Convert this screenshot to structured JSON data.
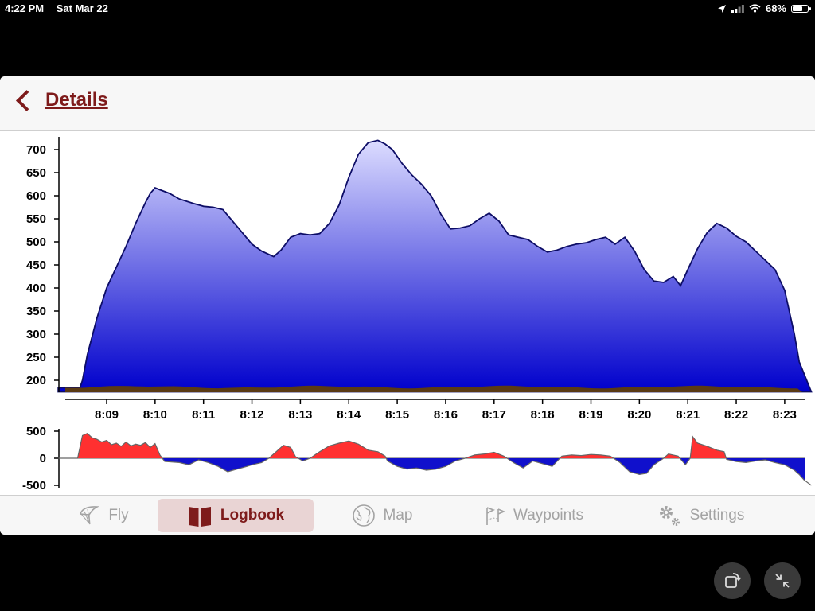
{
  "status": {
    "time": "4:22 PM",
    "date": "Sat Mar 22",
    "battery": "68%",
    "battery_level": 0.68
  },
  "nav": {
    "back_label": "Details"
  },
  "chart_data": [
    {
      "type": "area",
      "title": "",
      "xlabel": "",
      "ylabel": "",
      "ylim": [
        175,
        725
      ],
      "yticks": [
        200,
        250,
        300,
        350,
        400,
        450,
        500,
        550,
        600,
        650,
        700
      ],
      "xticks": [
        "8:09",
        "8:10",
        "8:11",
        "8:12",
        "8:13",
        "8:14",
        "8:15",
        "8:16",
        "8:17",
        "8:18",
        "8:19",
        "8:20",
        "8:21",
        "8:22",
        "8:23"
      ],
      "fill_top_color": "#dcdcff",
      "fill_bottom_color": "#0000cc",
      "line_color": "#0d0d66",
      "ground_color": "#5a3a14",
      "series": [
        {
          "name": "",
          "x": [
            8.0,
            8.3,
            8.45,
            8.5,
            8.6,
            8.8,
            9.0,
            9.2,
            9.4,
            9.6,
            9.8,
            9.9,
            10.0,
            10.1,
            10.3,
            10.5,
            10.8,
            11.0,
            11.2,
            11.4,
            11.6,
            11.8,
            12.0,
            12.2,
            12.45,
            12.6,
            12.8,
            13.0,
            13.2,
            13.4,
            13.6,
            13.8,
            14.0,
            14.2,
            14.4,
            14.6,
            14.75,
            14.9,
            15.1,
            15.3,
            15.5,
            15.7,
            15.9,
            16.1,
            16.3,
            16.5,
            16.7,
            16.9,
            17.1,
            17.3,
            17.5,
            17.7,
            17.9,
            18.1,
            18.3,
            18.5,
            18.7,
            18.9,
            19.1,
            19.3,
            19.5,
            19.7,
            19.9,
            20.1,
            20.3,
            20.5,
            20.7,
            20.85,
            21.0,
            21.2,
            21.4,
            21.6,
            21.8,
            22.0,
            22.2,
            22.4,
            22.6,
            22.8,
            23.0,
            23.2,
            23.3,
            23.55
          ],
          "y": [
            184,
            184,
            184,
            200,
            255,
            335,
            400,
            445,
            490,
            540,
            585,
            605,
            617,
            613,
            605,
            593,
            583,
            577,
            575,
            570,
            545,
            520,
            495,
            480,
            468,
            482,
            510,
            518,
            515,
            518,
            540,
            580,
            640,
            690,
            715,
            720,
            712,
            700,
            670,
            645,
            625,
            600,
            560,
            528,
            530,
            535,
            550,
            562,
            545,
            515,
            510,
            505,
            490,
            478,
            482,
            490,
            495,
            498,
            505,
            510,
            495,
            510,
            480,
            440,
            415,
            412,
            425,
            405,
            440,
            485,
            520,
            540,
            530,
            512,
            500,
            480,
            460,
            440,
            395,
            300,
            240,
            175
          ]
        }
      ]
    },
    {
      "type": "area",
      "title": "",
      "xlabel": "",
      "ylabel": "",
      "ylim": [
        -500,
        500
      ],
      "yticks": [
        500,
        0,
        -500
      ],
      "positive_color": "#ff3030",
      "negative_color": "#1010cc",
      "series": [
        {
          "name": "",
          "x": [
            8.0,
            8.4,
            8.5,
            8.6,
            8.7,
            8.8,
            8.9,
            9.0,
            9.1,
            9.2,
            9.3,
            9.4,
            9.5,
            9.6,
            9.7,
            9.8,
            9.9,
            10.0,
            10.1,
            10.2,
            10.5,
            10.7,
            10.9,
            11.1,
            11.3,
            11.5,
            11.7,
            11.9,
            12.0,
            12.2,
            12.35,
            12.5,
            12.65,
            12.8,
            12.9,
            13.05,
            13.2,
            13.4,
            13.6,
            13.8,
            14.0,
            14.2,
            14.4,
            14.6,
            14.75,
            14.8,
            15.0,
            15.2,
            15.4,
            15.6,
            15.8,
            16.0,
            16.2,
            16.4,
            16.6,
            16.8,
            17.0,
            17.2,
            17.4,
            17.6,
            17.8,
            18.0,
            18.2,
            18.4,
            18.6,
            18.8,
            19.0,
            19.2,
            19.4,
            19.6,
            19.8,
            20.0,
            20.15,
            20.3,
            20.5,
            20.6,
            20.8,
            20.95,
            21.05,
            21.1,
            21.2,
            21.4,
            21.6,
            21.75,
            21.8,
            22.0,
            22.2,
            22.4,
            22.6,
            22.8,
            23.0,
            23.2,
            23.3,
            23.4,
            23.55
          ],
          "y": [
            0,
            0,
            420,
            460,
            380,
            350,
            300,
            330,
            250,
            280,
            220,
            300,
            230,
            260,
            240,
            290,
            200,
            270,
            60,
            -60,
            -80,
            -120,
            -30,
            -80,
            -150,
            -250,
            -200,
            -150,
            -120,
            -80,
            0,
            120,
            240,
            200,
            30,
            -50,
            0,
            120,
            230,
            280,
            320,
            260,
            150,
            120,
            40,
            -50,
            -150,
            -200,
            -180,
            -220,
            -200,
            -150,
            -50,
            0,
            60,
            80,
            110,
            40,
            -80,
            -180,
            -50,
            -100,
            -150,
            40,
            60,
            50,
            70,
            60,
            40,
            -80,
            -250,
            -300,
            -280,
            -120,
            0,
            80,
            40,
            -120,
            0,
            400,
            280,
            220,
            150,
            120,
            -20,
            -60,
            -80,
            -50,
            -30,
            -80,
            -120,
            -220,
            -300,
            -400,
            -500
          ]
        }
      ]
    }
  ],
  "tabs": [
    {
      "label": "Fly",
      "icon": "paraglider-icon"
    },
    {
      "label": "Logbook",
      "icon": "book-icon"
    },
    {
      "label": "Map",
      "icon": "globe-icon"
    },
    {
      "label": "Waypoints",
      "icon": "flags-icon"
    },
    {
      "label": "Settings",
      "icon": "gears-icon"
    }
  ],
  "active_tab": "Logbook",
  "colors": {
    "accent": "#7e1b1b",
    "active_tab_bg": "#e9d4d4",
    "inactive": "#a3a3a3"
  }
}
